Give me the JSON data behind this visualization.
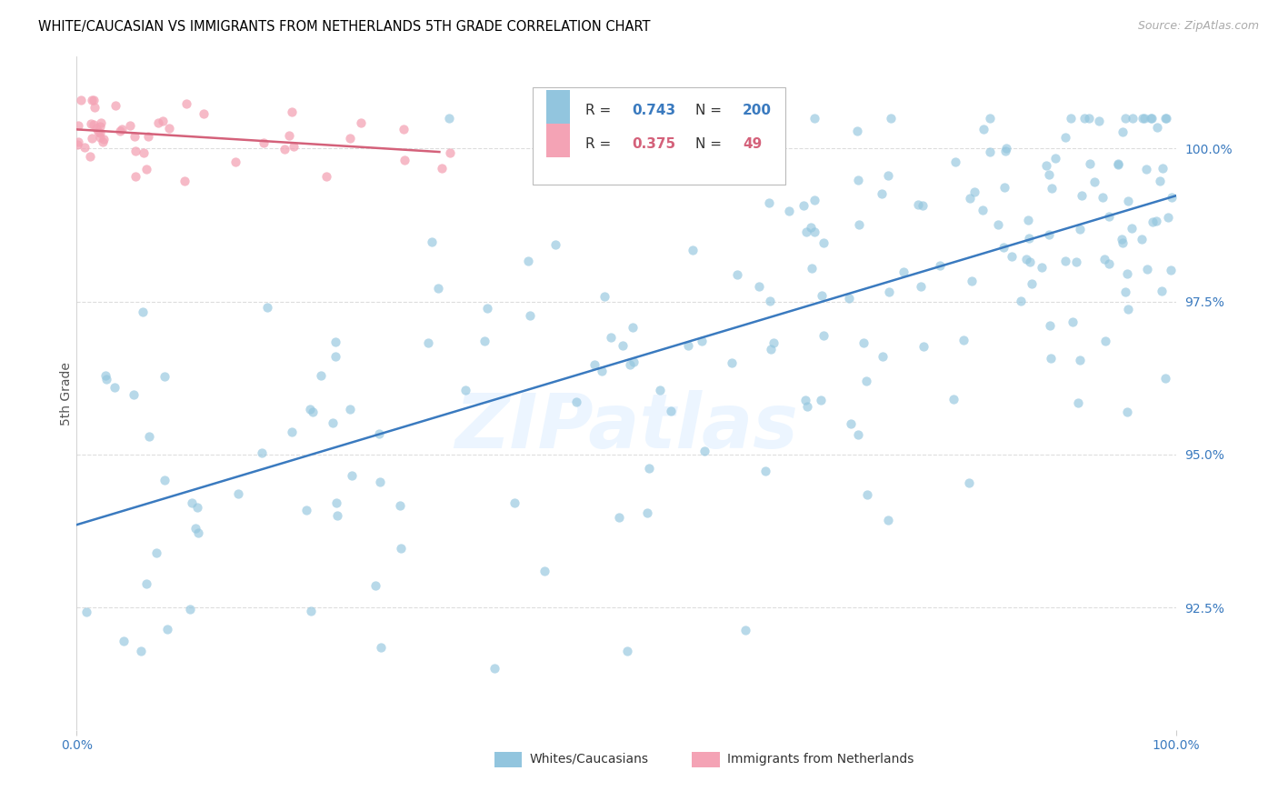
{
  "title": "WHITE/CAUCASIAN VS IMMIGRANTS FROM NETHERLANDS 5TH GRADE CORRELATION CHART",
  "source": "Source: ZipAtlas.com",
  "ylabel": "5th Grade",
  "yaxis_tick_vals": [
    92.5,
    95.0,
    97.5,
    100.0
  ],
  "yaxis_tick_labels": [
    "92.5%",
    "95.0%",
    "97.5%",
    "100.0%"
  ],
  "xlim": [
    0.0,
    100.0
  ],
  "ylim": [
    90.5,
    101.5
  ],
  "blue_color": "#92c5de",
  "pink_color": "#f4a3b5",
  "blue_line_color": "#3a7abf",
  "pink_line_color": "#d4617a",
  "legend_blue_R": "0.743",
  "legend_blue_N": "200",
  "legend_pink_R": "0.375",
  "legend_pink_N": "49",
  "watermark": "ZIPatlas",
  "title_fontsize": 11,
  "source_fontsize": 9,
  "blue_line_start_y": 94.0,
  "blue_line_end_y": 99.5,
  "pink_line_start_x": 0.0,
  "pink_line_start_y": 100.3,
  "pink_line_end_x": 33.0,
  "pink_line_end_y": 100.8
}
